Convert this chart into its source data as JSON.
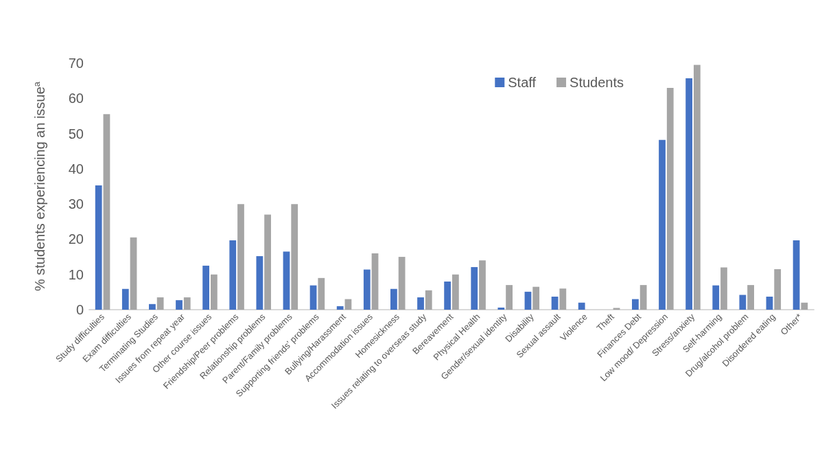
{
  "chart_data": {
    "type": "bar",
    "ylabel": "% students experiencing an issue$^{a}$",
    "categories": [
      "Study difficulties",
      "Exam difficulties",
      "Terminating Studies",
      "Issues from repeat year",
      "Other course issues",
      "Friendship/Peer problems",
      "Relationship problems",
      "Parent/Family problems",
      "Supporting friends’ problems",
      "Bullying/Harassment",
      "Accommodation issues",
      "Homesickness",
      "Issues relating to overseas study",
      "Bereavement",
      "Physical Health",
      "Gender/sexual identity",
      "Disability",
      "Sexual assault",
      "Violence",
      "Theft",
      "Finances Debt",
      "Low mood/ Depression",
      "Stress/anxiety",
      "Self-harming",
      "Drug/alcohol problem",
      "Disordered eating",
      "Other*"
    ],
    "series": [
      {
        "name": "Staff",
        "color": "#4472c4",
        "values": [
          35.3,
          5.9,
          1.6,
          2.7,
          12.5,
          19.7,
          15.2,
          16.5,
          6.9,
          1,
          11.4,
          5.9,
          3.5,
          8,
          12.1,
          0.6,
          5.1,
          3.7,
          2,
          0,
          3,
          48.2,
          65.7,
          6.9,
          4.2,
          3.7,
          19.7
        ]
      },
      {
        "name": "Students",
        "color": "#a5a5a5",
        "values": [
          55.5,
          20.5,
          3.5,
          3.5,
          10,
          30,
          27,
          30,
          9,
          3,
          16,
          15,
          5.5,
          10,
          14,
          7,
          6.5,
          6,
          0,
          0.5,
          7,
          63,
          69.5,
          12,
          7,
          11.5,
          2
        ]
      }
    ],
    "ylim": [
      0,
      70
    ],
    "yticks": [
      0,
      10,
      20,
      30,
      40,
      50,
      60,
      70
    ],
    "grid": false,
    "legend": "top right"
  }
}
